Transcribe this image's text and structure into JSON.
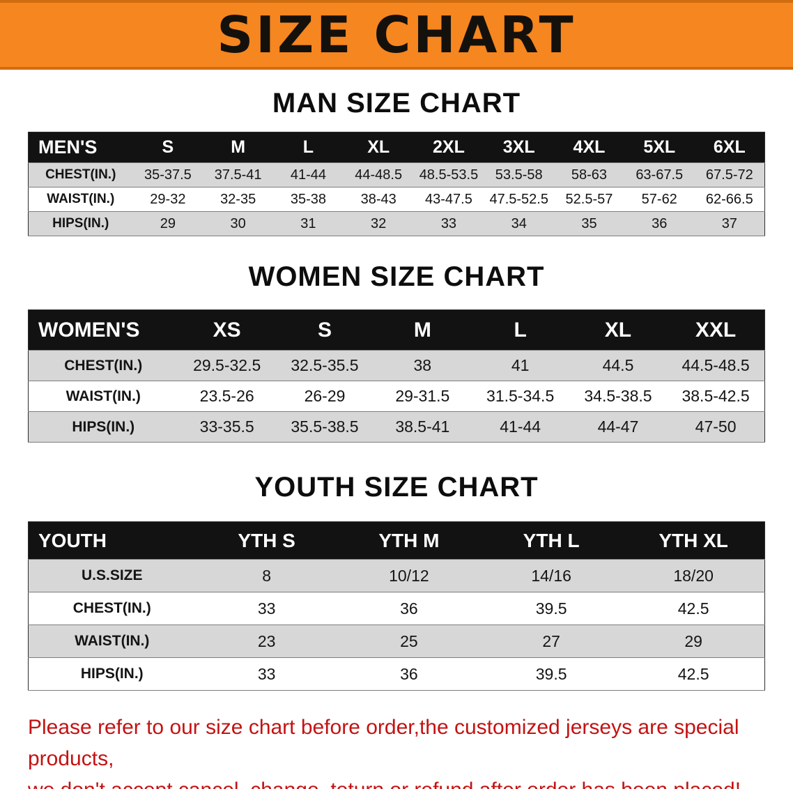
{
  "banner": {
    "title": "SIZE CHART",
    "bg_color": "#f6861f",
    "text_color": "#14110d"
  },
  "sections": [
    {
      "heading": "MAN SIZE CHART",
      "table": {
        "header": [
          "MEN'S",
          "S",
          "M",
          "L",
          "XL",
          "2XL",
          "3XL",
          "4XL",
          "5XL",
          "6XL"
        ],
        "rows": [
          [
            "CHEST(IN.)",
            "35-37.5",
            "37.5-41",
            "41-44",
            "44-48.5",
            "48.5-53.5",
            "53.5-58",
            "58-63",
            "63-67.5",
            "67.5-72"
          ],
          [
            "WAIST(IN.)",
            "29-32",
            "32-35",
            "35-38",
            "38-43",
            "43-47.5",
            "47.5-52.5",
            "52.5-57",
            "57-62",
            "62-66.5"
          ],
          [
            "HIPS(IN.)",
            "29",
            "30",
            "31",
            "32",
            "33",
            "34",
            "35",
            "36",
            "37"
          ]
        ]
      }
    },
    {
      "heading": "WOMEN SIZE CHART",
      "table": {
        "header": [
          "WOMEN'S",
          "XS",
          "S",
          "M",
          "L",
          "XL",
          "XXL"
        ],
        "rows": [
          [
            "CHEST(IN.)",
            "29.5-32.5",
            "32.5-35.5",
            "38",
            "41",
            "44.5",
            "44.5-48.5"
          ],
          [
            "WAIST(IN.)",
            "23.5-26",
            "26-29",
            "29-31.5",
            "31.5-34.5",
            "34.5-38.5",
            "38.5-42.5"
          ],
          [
            "HIPS(IN.)",
            "33-35.5",
            "35.5-38.5",
            "38.5-41",
            "41-44",
            "44-47",
            "47-50"
          ]
        ]
      }
    },
    {
      "heading": "YOUTH SIZE CHART",
      "table": {
        "header": [
          "YOUTH",
          "YTH S",
          "YTH M",
          "YTH L",
          "YTH XL"
        ],
        "rows": [
          [
            "U.S.SIZE",
            "8",
            "10/12",
            "14/16",
            "18/20"
          ],
          [
            "CHEST(IN.)",
            "33",
            "36",
            "39.5",
            "42.5"
          ],
          [
            "WAIST(IN.)",
            "23",
            "25",
            "27",
            "29"
          ],
          [
            "HIPS(IN.)",
            "33",
            "36",
            "39.5",
            "42.5"
          ]
        ]
      }
    }
  ],
  "footer": {
    "line1": "Please refer to our size chart before order,the customized jerseys are special products,",
    "line2": "we don't accept cancel, change, teturn or refund after order has been placed!",
    "text_color": "#c41212"
  }
}
